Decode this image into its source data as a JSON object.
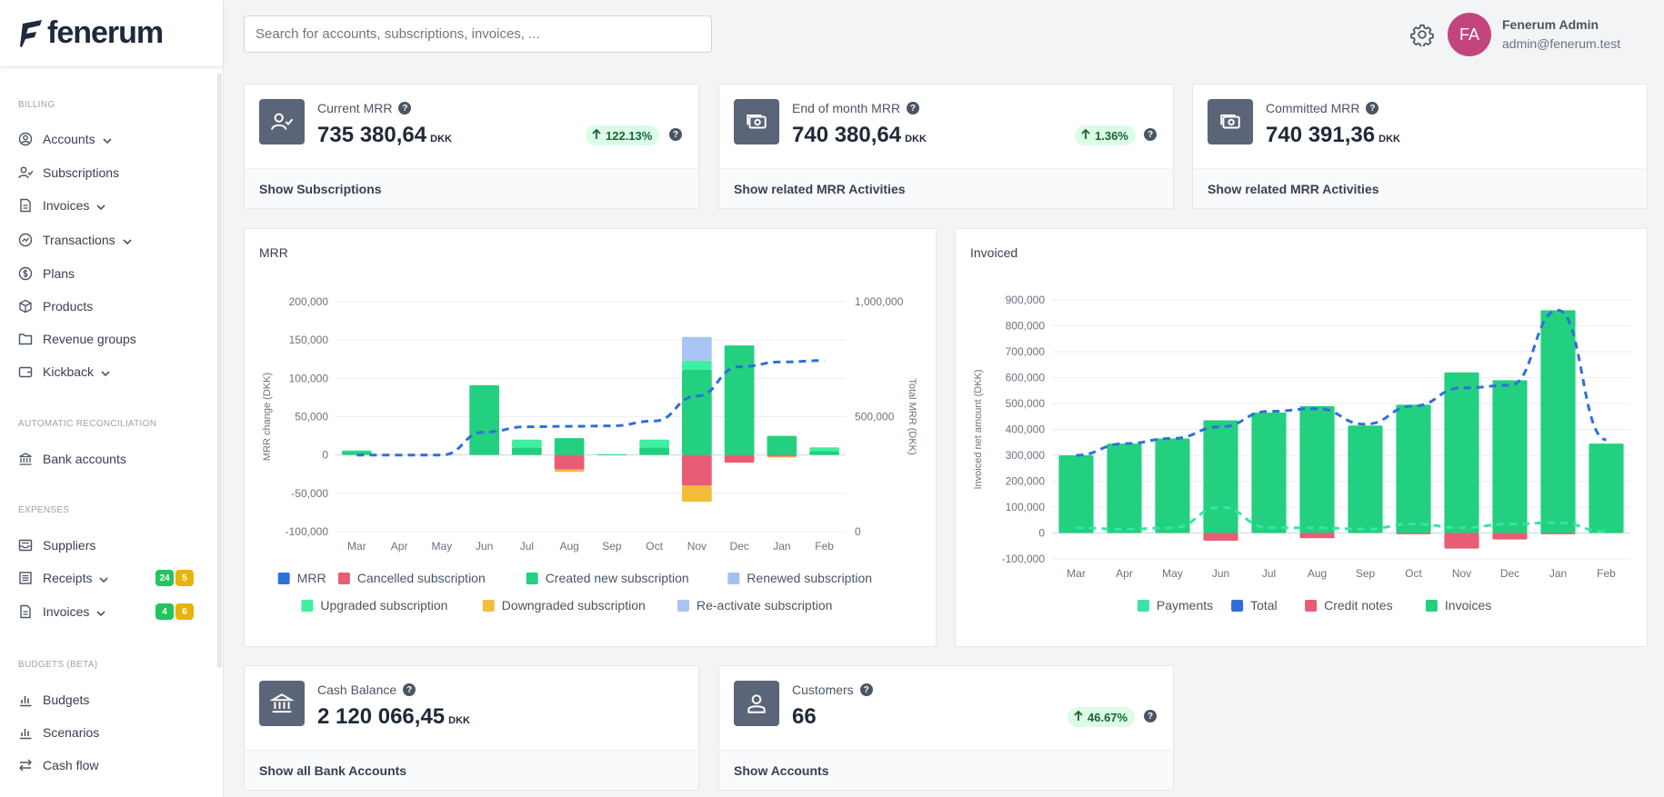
{
  "brand": {
    "name": "fenerum"
  },
  "search": {
    "placeholder": "Search for accounts, subscriptions, invoices, ..."
  },
  "user": {
    "initials": "FA",
    "name": "Fenerum Admin",
    "email": "admin@fenerum.test"
  },
  "sidebar": {
    "billing_title": "BILLING",
    "billing": [
      {
        "label": "Accounts"
      },
      {
        "label": "Subscriptions"
      },
      {
        "label": "Invoices"
      },
      {
        "label": "Transactions"
      },
      {
        "label": "Plans"
      },
      {
        "label": "Products"
      },
      {
        "label": "Revenue groups"
      },
      {
        "label": "Kickback"
      }
    ],
    "recon_title": "AUTOMATIC RECONCILIATION",
    "recon": [
      {
        "label": "Bank accounts"
      }
    ],
    "expenses_title": "EXPENSES",
    "expenses": [
      {
        "label": "Suppliers"
      },
      {
        "label": "Receipts",
        "badge_green": "24",
        "badge_yellow": "5"
      },
      {
        "label": "Invoices",
        "badge_green": "4",
        "badge_yellow": "6"
      }
    ],
    "budgets_title": "BUDGETS (BETA)",
    "budgets": [
      {
        "label": "Budgets"
      },
      {
        "label": "Scenarios"
      },
      {
        "label": "Cash flow"
      }
    ]
  },
  "kpis": [
    {
      "label": "Current MRR",
      "value": "735 380,64",
      "currency": "DKK",
      "change": "122.13%",
      "footer": "Show Subscriptions"
    },
    {
      "label": "End of month MRR",
      "value": "740 380,64",
      "currency": "DKK",
      "change": "1.36%",
      "footer": "Show related MRR Activities"
    },
    {
      "label": "Committed MRR",
      "value": "740 391,36",
      "currency": "DKK",
      "footer": "Show related MRR Activities"
    },
    {
      "label": "Cash Balance",
      "value": "2 120 066,45",
      "currency": "DKK",
      "footer": "Show all Bank Accounts"
    },
    {
      "label": "Customers",
      "value": "66",
      "change": "46.67%",
      "footer": "Show Accounts"
    }
  ],
  "colors": {
    "mrr": "#2f6fdc",
    "cancelled": "#e85d75",
    "created": "#22d07f",
    "renewed": "#a5c0f0",
    "upgraded": "#3ff0a0",
    "downgraded": "#f2bd3a",
    "reactivate": "#a8c4f2",
    "payments": "#35e6a6",
    "total": "#2f6fdc",
    "credit": "#e85d75",
    "invoices": "#22d07f"
  },
  "chart_data": [
    {
      "type": "bar",
      "title": "MRR",
      "categories": [
        "Mar",
        "Apr",
        "May",
        "Jun",
        "Jul",
        "Aug",
        "Sep",
        "Oct",
        "Nov",
        "Dec",
        "Jan",
        "Feb"
      ],
      "ylabel": "MRR change (DKK)",
      "y2label": "Total MRR (DKK)",
      "ylim": [
        -100000,
        200000
      ],
      "yticks": [
        "200,000",
        "150,000",
        "100,000",
        "50,000",
        "0",
        "-50,000",
        "-100,000"
      ],
      "y2lim": [
        0,
        1000000
      ],
      "y2ticks": [
        "1,000,000",
        "500,000",
        "0"
      ],
      "stacked": true,
      "series": [
        {
          "name": "MRR",
          "kind": "line",
          "axis": "right",
          "color_key": "mrr",
          "values": [
            333000,
            333000,
            333000,
            433000,
            456000,
            458000,
            460000,
            481000,
            590000,
            717000,
            738000,
            744000
          ]
        },
        {
          "name": "Cancelled subscription",
          "color_key": "cancelled",
          "values": [
            0,
            0,
            0,
            0,
            0,
            -19000,
            0,
            0,
            -40000,
            -10000,
            -2000,
            0
          ]
        },
        {
          "name": "Created new subscription",
          "color_key": "created",
          "values": [
            5000,
            0,
            0,
            91000,
            10000,
            22000,
            1000,
            10000,
            111000,
            143000,
            25000,
            5000
          ]
        },
        {
          "name": "Renewed subscription",
          "color_key": "renewed",
          "values": [
            0,
            0,
            0,
            0,
            0,
            0,
            0,
            0,
            0,
            0,
            0,
            0
          ]
        },
        {
          "name": "Upgraded subscription",
          "color_key": "upgraded",
          "values": [
            1000,
            0,
            0,
            0,
            10000,
            0,
            0,
            10000,
            12000,
            0,
            0,
            5000
          ]
        },
        {
          "name": "Downgraded subscription",
          "color_key": "downgraded",
          "values": [
            0,
            0,
            0,
            0,
            0,
            -3000,
            0,
            0,
            -21000,
            0,
            -1000,
            0
          ]
        },
        {
          "name": "Re-activate subscription",
          "color_key": "reactivate",
          "values": [
            0,
            0,
            0,
            0,
            0,
            0,
            0,
            0,
            31000,
            0,
            0,
            0
          ]
        }
      ]
    },
    {
      "type": "bar",
      "title": "Invoiced",
      "categories": [
        "Mar",
        "Apr",
        "May",
        "Jun",
        "Jul",
        "Aug",
        "Sep",
        "Oct",
        "Nov",
        "Dec",
        "Jan",
        "Feb"
      ],
      "ylabel": "Invoiced net amount (DKK)",
      "ylim": [
        -100000,
        900000
      ],
      "yticks": [
        "900,000",
        "800,000",
        "700,000",
        "600,000",
        "500,000",
        "400,000",
        "300,000",
        "200,000",
        "100,000",
        "0",
        "-100,000"
      ],
      "stacked": true,
      "series": [
        {
          "name": "Payments",
          "kind": "line",
          "color_key": "payments",
          "values": [
            20000,
            15000,
            20000,
            100000,
            20000,
            20000,
            15000,
            35000,
            20000,
            35000,
            40000,
            5000
          ]
        },
        {
          "name": "Total",
          "kind": "line",
          "color_key": "total",
          "values": [
            300000,
            345000,
            365000,
            410000,
            470000,
            480000,
            420000,
            490000,
            560000,
            570000,
            860000,
            360000
          ]
        },
        {
          "name": "Credit notes",
          "color_key": "credit",
          "values": [
            0,
            0,
            0,
            -30000,
            0,
            -20000,
            0,
            -5000,
            -60000,
            -25000,
            -5000,
            0
          ]
        },
        {
          "name": "Invoices",
          "color_key": "invoices",
          "values": [
            300000,
            345000,
            365000,
            435000,
            465000,
            490000,
            415000,
            495000,
            620000,
            590000,
            860000,
            345000
          ]
        }
      ]
    }
  ]
}
